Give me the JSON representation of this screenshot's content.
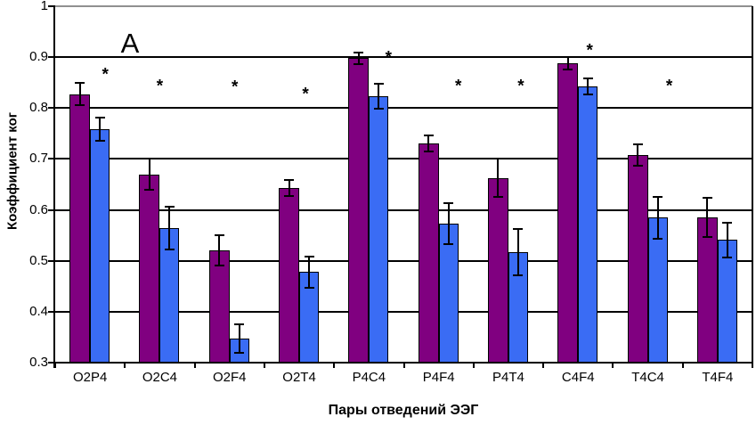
{
  "chart_data": {
    "type": "bar",
    "panel_label": "A",
    "xlabel": "Пары отведений ЭЭГ",
    "ylabel": "Коэффициент ког",
    "ylim": [
      0.3,
      1.0
    ],
    "ytick_labels": [
      "1",
      "0.9",
      "0.8",
      "0.7",
      "0.6",
      "0.5",
      "0.4",
      "0.3"
    ],
    "yticks": [
      1.0,
      0.9,
      0.8,
      0.7,
      0.6,
      0.5,
      0.4,
      0.3
    ],
    "grid": true,
    "legend": "none",
    "categories": [
      "O2P4",
      "O2C4",
      "O2F4",
      "O2T4",
      "P4C4",
      "P4F4",
      "P4T4",
      "C4F4",
      "T4C4",
      "T4F4"
    ],
    "series": [
      {
        "name": "series-1-purple",
        "color": "#800080",
        "values": [
          0.827,
          0.67,
          0.52,
          0.643,
          0.898,
          0.73,
          0.663,
          0.888,
          0.707,
          0.585
        ],
        "errors": [
          0.022,
          0.03,
          0.03,
          0.015,
          0.011,
          0.016,
          0.038,
          0.013,
          0.021,
          0.038
        ]
      },
      {
        "name": "series-2-blue",
        "color": "#3A6CF4",
        "values": [
          0.758,
          0.564,
          0.348,
          0.478,
          0.823,
          0.573,
          0.517,
          0.842,
          0.585,
          0.541
        ],
        "errors": [
          0.023,
          0.042,
          0.028,
          0.031,
          0.024,
          0.04,
          0.045,
          0.016,
          0.041,
          0.034
        ]
      }
    ],
    "significance_markers": [
      {
        "category": "O2P4",
        "symbol": "*",
        "y": 0.869,
        "x_offset": 17
      },
      {
        "category": "O2C4",
        "symbol": "*",
        "y": 0.846,
        "x_offset": 0
      },
      {
        "category": "O2F4",
        "symbol": "*",
        "y": 0.844,
        "x_offset": 6
      },
      {
        "category": "O2T4",
        "symbol": "*",
        "y": 0.83,
        "x_offset": 7
      },
      {
        "category": "P4C4",
        "symbol": "*",
        "y": 0.902,
        "x_offset": 22
      },
      {
        "category": "P4F4",
        "symbol": "*",
        "y": 0.846,
        "x_offset": 22
      },
      {
        "category": "P4T4",
        "symbol": "*",
        "y": 0.846,
        "x_offset": 14
      },
      {
        "category": "C4F4",
        "symbol": "*",
        "y": 0.916,
        "x_offset": 13
      },
      {
        "category": "T4C4",
        "symbol": "*",
        "y": 0.846,
        "x_offset": 24
      }
    ],
    "colors": {
      "grid": "#000000",
      "top_border": "#909090",
      "axis": "#000000",
      "background": "#FFFFFF"
    }
  }
}
